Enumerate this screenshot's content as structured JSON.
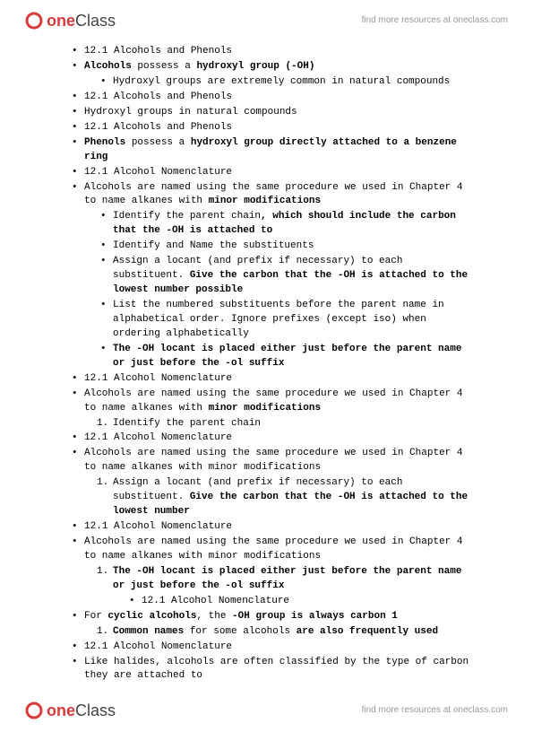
{
  "brand": {
    "part1": "one",
    "part2": "Class"
  },
  "tagline": "find more resources at oneclass.com",
  "lines": [
    {
      "lvl": "b1",
      "kind": "bullet",
      "runs": [
        {
          "t": "12.1 Alcohols and Phenols"
        }
      ]
    },
    {
      "lvl": "b1",
      "kind": "bullet",
      "runs": [
        {
          "t": "Alcohols",
          "b": true
        },
        {
          "t": " possess a "
        },
        {
          "t": "hydroxyl group (-OH)",
          "b": true
        }
      ]
    },
    {
      "lvl": "b2",
      "kind": "bullet",
      "runs": [
        {
          "t": "Hydroxyl groups are extremely common in natural compounds"
        }
      ]
    },
    {
      "lvl": "b1",
      "kind": "bullet",
      "runs": [
        {
          "t": "12.1 Alcohols and Phenols"
        }
      ]
    },
    {
      "lvl": "b1",
      "kind": "bullet",
      "runs": [
        {
          "t": "Hydroxyl groups in natural compounds"
        }
      ]
    },
    {
      "lvl": "b1",
      "kind": "bullet",
      "runs": [
        {
          "t": "12.1 Alcohols and Phenols"
        }
      ]
    },
    {
      "lvl": "b1",
      "kind": "bullet",
      "runs": [
        {
          "t": "Phenols",
          "b": true
        },
        {
          "t": " possess a "
        },
        {
          "t": "hydroxyl group directly attached to a benzene ring",
          "b": true
        }
      ]
    },
    {
      "lvl": "b1",
      "kind": "bullet",
      "runs": [
        {
          "t": "12.1 Alcohol Nomenclature"
        }
      ]
    },
    {
      "lvl": "b1",
      "kind": "bullet",
      "runs": [
        {
          "t": "Alcohols are named using the same procedure we used in Chapter 4 to name alkanes with "
        },
        {
          "t": "minor modifications",
          "b": true
        }
      ]
    },
    {
      "lvl": "b2",
      "kind": "bullet",
      "runs": [
        {
          "t": "Identify the parent chain"
        },
        {
          "t": ", which should include the carbon that the -OH is attached to",
          "b": true
        }
      ]
    },
    {
      "lvl": "b2",
      "kind": "bullet",
      "runs": [
        {
          "t": "Identify and Name the substituents"
        }
      ]
    },
    {
      "lvl": "b2",
      "kind": "bullet",
      "runs": [
        {
          "t": "Assign a locant (and prefix if necessary) to each substituent. "
        },
        {
          "t": "Give the carbon that the -OH is attached to the lowest number possible",
          "b": true
        }
      ]
    },
    {
      "lvl": "b2",
      "kind": "bullet",
      "runs": [
        {
          "t": "List the numbered substituents before the parent name in alphabetical order. Ignore prefixes (except iso) when ordering alphabetically"
        }
      ]
    },
    {
      "lvl": "b2",
      "kind": "bullet",
      "runs": [
        {
          "t": "The -OH locant is placed either just before the parent name or just before the -ol suffix",
          "b": true
        }
      ]
    },
    {
      "lvl": "b1",
      "kind": "bullet",
      "runs": [
        {
          "t": "12.1 Alcohol Nomenclature"
        }
      ]
    },
    {
      "lvl": "b1",
      "kind": "bullet",
      "runs": [
        {
          "t": "Alcohols are named using the same procedure we used in Chapter 4 to name alkanes with "
        },
        {
          "t": "minor modifications",
          "b": true
        }
      ]
    },
    {
      "lvl": "n2",
      "kind": "num",
      "num": "1",
      "runs": [
        {
          "t": "Identify the parent chain"
        }
      ]
    },
    {
      "lvl": "b1",
      "kind": "bullet",
      "runs": [
        {
          "t": "12.1 Alcohol Nomenclature"
        }
      ]
    },
    {
      "lvl": "b1",
      "kind": "bullet",
      "runs": [
        {
          "t": "Alcohols are named using the same procedure we used in Chapter 4 to name alkanes with minor modifications"
        }
      ]
    },
    {
      "lvl": "n2",
      "kind": "num",
      "num": "1",
      "runs": [
        {
          "t": "Assign a locant (and prefix if necessary) to each substituent. "
        },
        {
          "t": "Give the carbon that the -OH is attached to the lowest number",
          "b": true
        }
      ]
    },
    {
      "lvl": "b1",
      "kind": "bullet",
      "runs": [
        {
          "t": "12.1 Alcohol Nomenclature"
        }
      ]
    },
    {
      "lvl": "b1",
      "kind": "bullet",
      "runs": [
        {
          "t": "Alcohols are named using the same procedure we used in Chapter 4 to name alkanes with minor modifications"
        }
      ]
    },
    {
      "lvl": "n2",
      "kind": "num",
      "num": "1",
      "runs": [
        {
          "t": "The -OH locant is placed either just before the parent name or just before the -ol suffix",
          "b": true
        }
      ]
    },
    {
      "lvl": "b3",
      "kind": "bullet",
      "runs": [
        {
          "t": "12.1 Alcohol Nomenclature"
        }
      ]
    },
    {
      "lvl": "b1",
      "kind": "bullet",
      "runs": [
        {
          "t": "For "
        },
        {
          "t": "cyclic alcohols",
          "b": true
        },
        {
          "t": ", the "
        },
        {
          "t": "-OH group is always carbon 1",
          "b": true
        }
      ]
    },
    {
      "lvl": "n2",
      "kind": "num",
      "num": "1",
      "runs": [
        {
          "t": "Common names",
          "b": true
        },
        {
          "t": " for some alcohols "
        },
        {
          "t": "are also frequently used",
          "b": true
        }
      ]
    },
    {
      "lvl": "b1",
      "kind": "bullet",
      "runs": [
        {
          "t": "12.1 Alcohol Nomenclature"
        }
      ]
    },
    {
      "lvl": "b1",
      "kind": "bullet",
      "runs": [
        {
          "t": "Like halides, alcohols are often classified by the type of carbon they are attached to"
        }
      ]
    }
  ]
}
